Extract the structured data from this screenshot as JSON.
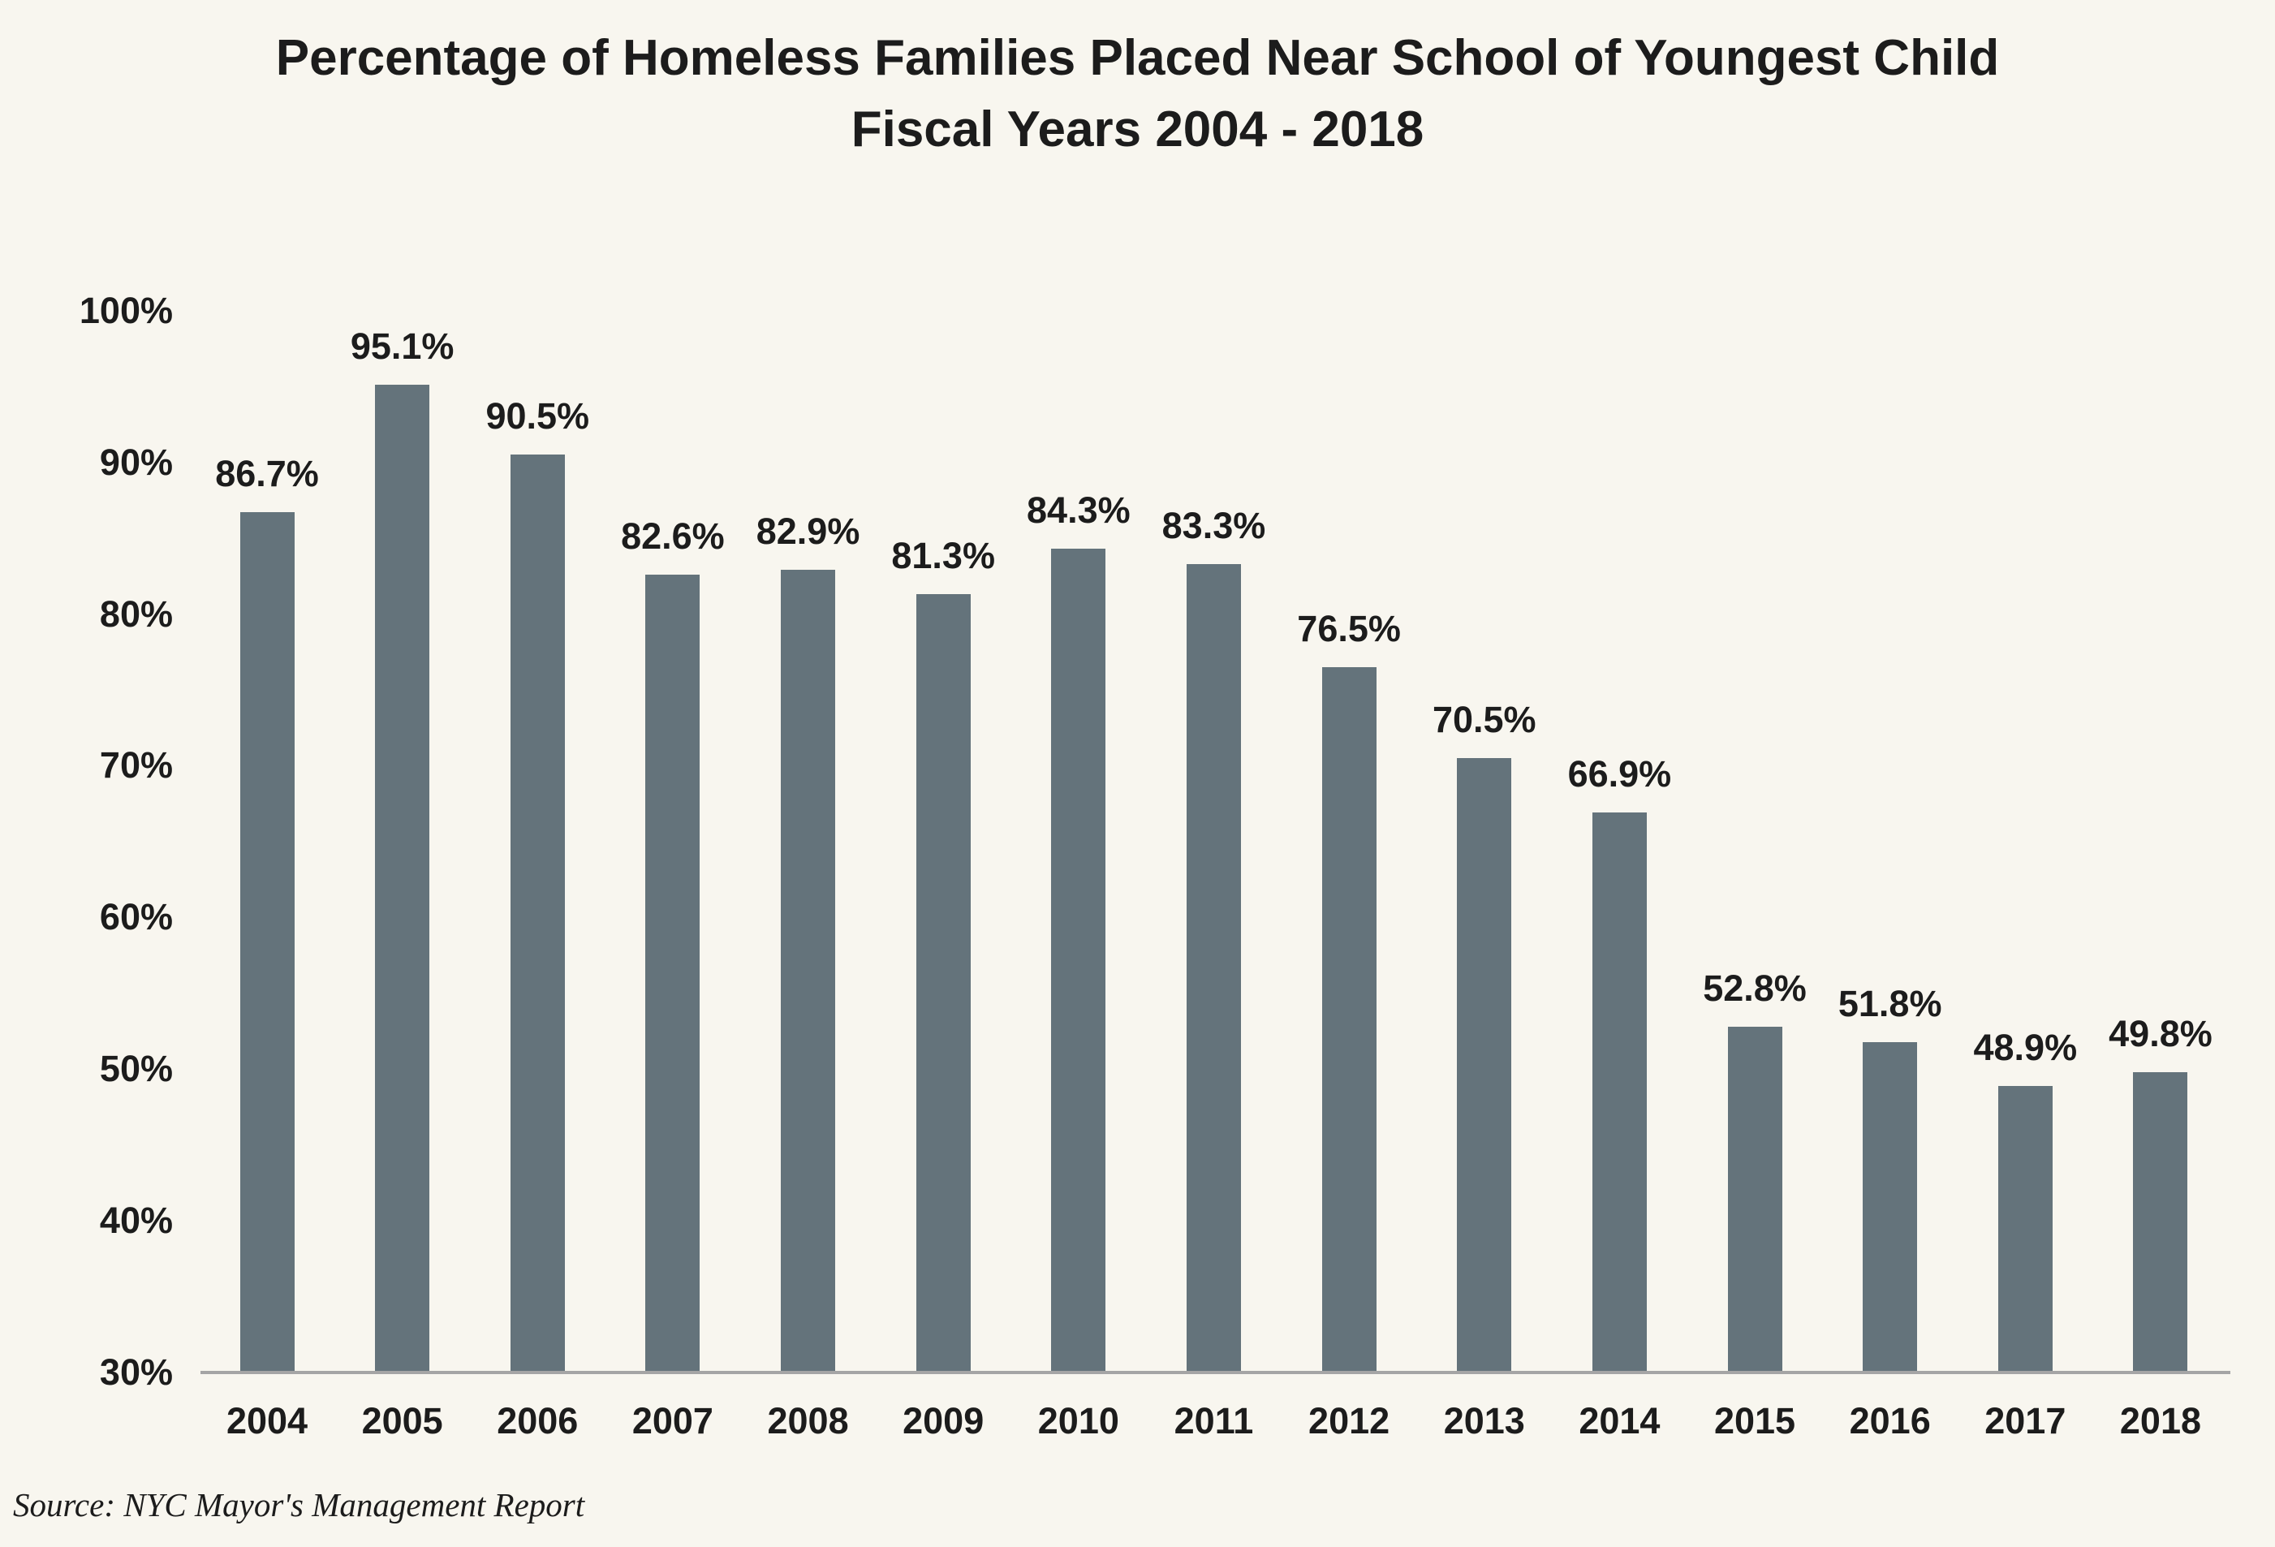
{
  "title": {
    "line1": "Percentage of Homeless Families Placed Near School of Youngest Child",
    "line2": "Fiscal Years 2004 - 2018"
  },
  "source": "Source: NYC Mayor's Management Report",
  "colors": {
    "background": "#f8f6ef",
    "bar": "#64737b",
    "text": "#1c1c1c",
    "axis_line": "#a5a5a5"
  },
  "chart_data": {
    "type": "bar",
    "title": "Percentage of Homeless Families Placed Near School of Youngest Child — Fiscal Years 2004 - 2018",
    "xlabel": "",
    "ylabel": "",
    "categories": [
      "2004",
      "2005",
      "2006",
      "2007",
      "2008",
      "2009",
      "2010",
      "2011",
      "2012",
      "2013",
      "2014",
      "2015",
      "2016",
      "2017",
      "2018"
    ],
    "values": [
      86.7,
      95.1,
      90.5,
      82.6,
      82.9,
      81.3,
      84.3,
      83.3,
      76.5,
      70.5,
      66.9,
      52.8,
      51.8,
      48.9,
      49.8
    ],
    "value_labels": [
      "86.7%",
      "95.1%",
      "90.5%",
      "82.6%",
      "82.9%",
      "81.3%",
      "84.3%",
      "83.3%",
      "76.5%",
      "70.5%",
      "66.9%",
      "52.8%",
      "51.8%",
      "48.9%",
      "49.8%"
    ],
    "ylim": [
      30,
      100
    ],
    "yticks": [
      100,
      90,
      80,
      70,
      60,
      50,
      40,
      30
    ],
    "ytick_labels": [
      "100%",
      "90%",
      "80%",
      "70%",
      "60%",
      "50%",
      "40%",
      "30%"
    ],
    "grid": false,
    "legend": null,
    "bar_labels_position": "above",
    "source_note": "Source: NYC Mayor's Management Report"
  }
}
